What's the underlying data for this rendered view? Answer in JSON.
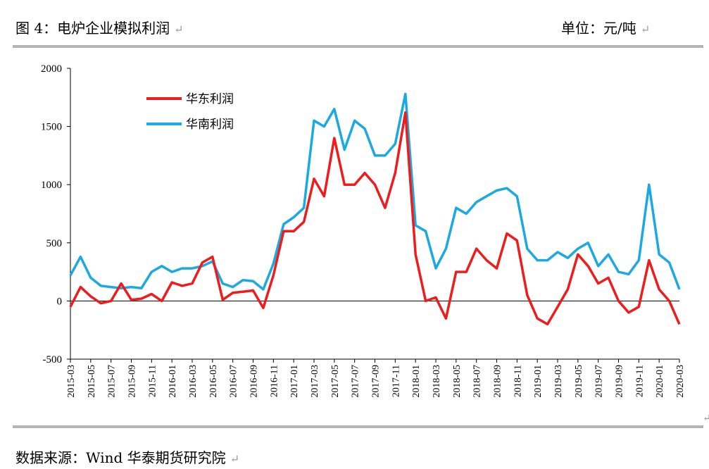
{
  "header": {
    "title": "图 4：电炉企业模拟利润",
    "unit": "单位：元/吨"
  },
  "footer": {
    "source": "数据来源：Wind 华泰期货研究院"
  },
  "chart_data": {
    "type": "line",
    "title": "电炉企业模拟利润",
    "ylabel": "",
    "xlabel": "",
    "ylim": [
      -500,
      2000
    ],
    "yticks": [
      "2000",
      "1500",
      "1000",
      "500",
      "0",
      "-500"
    ],
    "xlim": [
      "2015-03",
      "2020-03"
    ],
    "xticks": [
      "2015-03",
      "2015-05",
      "2015-07",
      "2015-09",
      "2015-11",
      "2016-01",
      "2016-03",
      "2016-05",
      "2016-07",
      "2016-09",
      "2016-11",
      "2017-01",
      "2017-03",
      "2017-05",
      "2017-07",
      "2017-09",
      "2017-11",
      "2018-01",
      "2018-03",
      "2018-05",
      "2018-07",
      "2018-09",
      "2018-11",
      "2019-01",
      "2019-03",
      "2019-05",
      "2019-07",
      "2019-09",
      "2019-11",
      "2020-01",
      "2020-03"
    ],
    "grid": false,
    "legend_position": "top-left",
    "x": [
      "2015-03-01",
      "2015-04-01",
      "2015-05-01",
      "2015-06-01",
      "2015-07-01",
      "2015-08-01",
      "2015-09-01",
      "2015-10-01",
      "2015-11-01",
      "2015-12-01",
      "2016-01-01",
      "2016-02-01",
      "2016-03-01",
      "2016-04-01",
      "2016-05-01",
      "2016-06-01",
      "2016-07-01",
      "2016-08-01",
      "2016-09-01",
      "2016-10-01",
      "2016-11-01",
      "2016-12-01",
      "2017-01-01",
      "2017-02-01",
      "2017-03-01",
      "2017-04-01",
      "2017-05-01",
      "2017-06-01",
      "2017-07-01",
      "2017-08-01",
      "2017-09-01",
      "2017-10-01",
      "2017-11-01",
      "2017-12-01",
      "2018-01-01",
      "2018-02-01",
      "2018-03-01",
      "2018-04-01",
      "2018-05-01",
      "2018-06-01",
      "2018-07-01",
      "2018-08-01",
      "2018-09-01",
      "2018-10-01",
      "2018-11-01",
      "2018-12-01",
      "2019-01-01",
      "2019-02-01",
      "2019-03-01",
      "2019-04-01",
      "2019-05-01",
      "2019-06-01",
      "2019-07-01",
      "2019-08-01",
      "2019-09-01",
      "2019-10-01",
      "2019-11-01",
      "2019-12-01",
      "2020-01-01",
      "2020-02-01",
      "2020-03-01"
    ],
    "series": [
      {
        "name": "华东利润",
        "color": "#ee1c1c",
        "values": [
          -50,
          120,
          40,
          -20,
          0,
          150,
          10,
          20,
          60,
          0,
          160,
          130,
          150,
          330,
          380,
          10,
          70,
          80,
          90,
          -60,
          220,
          600,
          600,
          680,
          1050,
          900,
          1400,
          1000,
          1000,
          1100,
          1000,
          800,
          1100,
          1620,
          400,
          0,
          30,
          -150,
          250,
          250,
          450,
          350,
          280,
          580,
          520,
          50,
          -150,
          -200,
          -50,
          100,
          400,
          300,
          150,
          200,
          0,
          -100,
          -50,
          350,
          100,
          0,
          -200
        ]
      },
      {
        "name": "华南利润",
        "color": "#1ba9e2",
        "values": [
          220,
          380,
          200,
          130,
          120,
          110,
          120,
          110,
          250,
          300,
          250,
          280,
          280,
          300,
          340,
          150,
          120,
          180,
          170,
          100,
          320,
          660,
          720,
          800,
          1550,
          1500,
          1650,
          1300,
          1550,
          1480,
          1250,
          1250,
          1350,
          1780,
          650,
          600,
          280,
          450,
          800,
          750,
          850,
          900,
          950,
          970,
          900,
          450,
          350,
          350,
          420,
          370,
          450,
          500,
          300,
          400,
          250,
          230,
          350,
          1000,
          400,
          330,
          100
        ]
      }
    ]
  }
}
